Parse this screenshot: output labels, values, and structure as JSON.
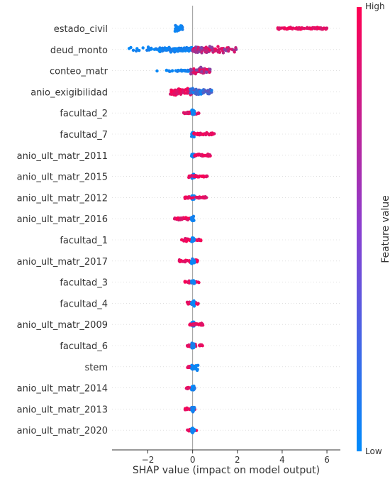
{
  "chart_data": {
    "type": "scatter",
    "subtype": "shap-beeswarm",
    "xlabel": "SHAP value (impact on model output)",
    "xlim": [
      -3.6,
      6.6
    ],
    "xticks": [
      -2,
      0,
      2,
      4,
      6
    ],
    "xtick_labels": [
      "−2",
      "0",
      "2",
      "4",
      "6"
    ],
    "zero_line": true,
    "colorbar": {
      "label": "Feature value",
      "high_label": "High",
      "low_label": "Low",
      "low_color": "#008bfb",
      "high_color": "#ff0052"
    },
    "features": [
      {
        "name": "estado_civil",
        "clusters": [
          {
            "min": -0.8,
            "max": -0.45,
            "spread": 0.45,
            "color": "low",
            "n": 60
          },
          {
            "min": 3.8,
            "max": 6.0,
            "spread": 0.18,
            "color": "high",
            "n": 90
          }
        ]
      },
      {
        "name": "deud_monto",
        "clusters": [
          {
            "min": -3.3,
            "max": 0.3,
            "spread": 0.35,
            "color": "low",
            "n": 170,
            "density": "right"
          },
          {
            "min": 0.0,
            "max": 2.1,
            "spread": 0.5,
            "color": "high",
            "n": 110,
            "density": "left"
          }
        ]
      },
      {
        "name": "conteo_matr",
        "clusters": [
          {
            "min": -2.0,
            "max": 0.2,
            "spread": 0.12,
            "color": "low",
            "n": 70,
            "density": "right"
          },
          {
            "min": -0.1,
            "max": 0.8,
            "spread": 0.55,
            "color": "high",
            "n": 70
          }
        ]
      },
      {
        "name": "anio_exigibilidad",
        "clusters": [
          {
            "min": -1.0,
            "max": 0.0,
            "spread": 0.55,
            "color": "high",
            "n": 80
          },
          {
            "min": -0.1,
            "max": 0.85,
            "spread": 0.55,
            "color": "low",
            "n": 80
          }
        ]
      },
      {
        "name": "facultad_2",
        "clusters": [
          {
            "min": -0.4,
            "max": 0.3,
            "spread": 0.2,
            "color": "high",
            "n": 30
          },
          {
            "min": -0.05,
            "max": 0.08,
            "spread": 0.45,
            "color": "low",
            "n": 20
          }
        ]
      },
      {
        "name": "facultad_7",
        "clusters": [
          {
            "min": -0.05,
            "max": 0.08,
            "spread": 0.4,
            "color": "low",
            "n": 22
          },
          {
            "min": 0.05,
            "max": 1.0,
            "spread": 0.2,
            "color": "high",
            "n": 40
          }
        ]
      },
      {
        "name": "anio_ult_matr_2011",
        "clusters": [
          {
            "min": -0.05,
            "max": 0.08,
            "spread": 0.4,
            "color": "low",
            "n": 22
          },
          {
            "min": 0.05,
            "max": 0.8,
            "spread": 0.2,
            "color": "high",
            "n": 40
          }
        ]
      },
      {
        "name": "anio_ult_matr_2015",
        "clusters": [
          {
            "min": -0.05,
            "max": 0.08,
            "spread": 0.4,
            "color": "low",
            "n": 22
          },
          {
            "min": -0.2,
            "max": 0.65,
            "spread": 0.2,
            "color": "high",
            "n": 36
          }
        ]
      },
      {
        "name": "anio_ult_matr_2012",
        "clusters": [
          {
            "min": -0.05,
            "max": 0.08,
            "spread": 0.4,
            "color": "low",
            "n": 22
          },
          {
            "min": -0.35,
            "max": 0.65,
            "spread": 0.2,
            "color": "high",
            "n": 36
          }
        ]
      },
      {
        "name": "anio_ult_matr_2016",
        "clusters": [
          {
            "min": -0.85,
            "max": 0.0,
            "spread": 0.2,
            "color": "high",
            "n": 40
          },
          {
            "min": -0.05,
            "max": 0.08,
            "spread": 0.4,
            "color": "low",
            "n": 22
          }
        ]
      },
      {
        "name": "facultad_1",
        "clusters": [
          {
            "min": -0.55,
            "max": 0.4,
            "spread": 0.2,
            "color": "high",
            "n": 36
          },
          {
            "min": -0.05,
            "max": 0.08,
            "spread": 0.4,
            "color": "low",
            "n": 22
          }
        ]
      },
      {
        "name": "anio_ult_matr_2017",
        "clusters": [
          {
            "min": -0.6,
            "max": 0.25,
            "spread": 0.2,
            "color": "high",
            "n": 36
          },
          {
            "min": -0.05,
            "max": 0.08,
            "spread": 0.4,
            "color": "low",
            "n": 22
          }
        ]
      },
      {
        "name": "facultad_3",
        "clusters": [
          {
            "min": -0.35,
            "max": 0.3,
            "spread": 0.2,
            "color": "high",
            "n": 30
          },
          {
            "min": -0.05,
            "max": 0.08,
            "spread": 0.4,
            "color": "low",
            "n": 22
          }
        ]
      },
      {
        "name": "facultad_4",
        "clusters": [
          {
            "min": -0.3,
            "max": 0.3,
            "spread": 0.2,
            "color": "high",
            "n": 28
          },
          {
            "min": -0.05,
            "max": 0.08,
            "spread": 0.4,
            "color": "low",
            "n": 22
          }
        ]
      },
      {
        "name": "anio_ult_matr_2009",
        "clusters": [
          {
            "min": -0.05,
            "max": 0.08,
            "spread": 0.4,
            "color": "low",
            "n": 22
          },
          {
            "min": -0.15,
            "max": 0.55,
            "spread": 0.2,
            "color": "high",
            "n": 30
          }
        ]
      },
      {
        "name": "facultad_6",
        "clusters": [
          {
            "min": -0.25,
            "max": 0.45,
            "spread": 0.2,
            "color": "high",
            "n": 30
          },
          {
            "min": -0.05,
            "max": 0.08,
            "spread": 0.4,
            "color": "low",
            "n": 22
          }
        ]
      },
      {
        "name": "stem",
        "clusters": [
          {
            "min": -0.25,
            "max": 0.15,
            "spread": 0.25,
            "color": "high",
            "n": 24
          },
          {
            "min": -0.05,
            "max": 0.25,
            "spread": 0.45,
            "color": "low",
            "n": 24
          }
        ]
      },
      {
        "name": "anio_ult_matr_2014",
        "clusters": [
          {
            "min": -0.3,
            "max": 0.1,
            "spread": 0.15,
            "color": "high",
            "n": 22
          },
          {
            "min": -0.05,
            "max": 0.08,
            "spread": 0.4,
            "color": "low",
            "n": 22
          }
        ]
      },
      {
        "name": "anio_ult_matr_2013",
        "clusters": [
          {
            "min": -0.35,
            "max": 0.1,
            "spread": 0.15,
            "color": "high",
            "n": 22
          },
          {
            "min": -0.05,
            "max": 0.08,
            "spread": 0.4,
            "color": "low",
            "n": 22
          }
        ]
      },
      {
        "name": "anio_ult_matr_2020",
        "clusters": [
          {
            "min": -0.3,
            "max": 0.2,
            "spread": 0.15,
            "color": "high",
            "n": 22
          },
          {
            "min": -0.05,
            "max": 0.08,
            "spread": 0.4,
            "color": "low",
            "n": 22
          }
        ]
      }
    ]
  }
}
